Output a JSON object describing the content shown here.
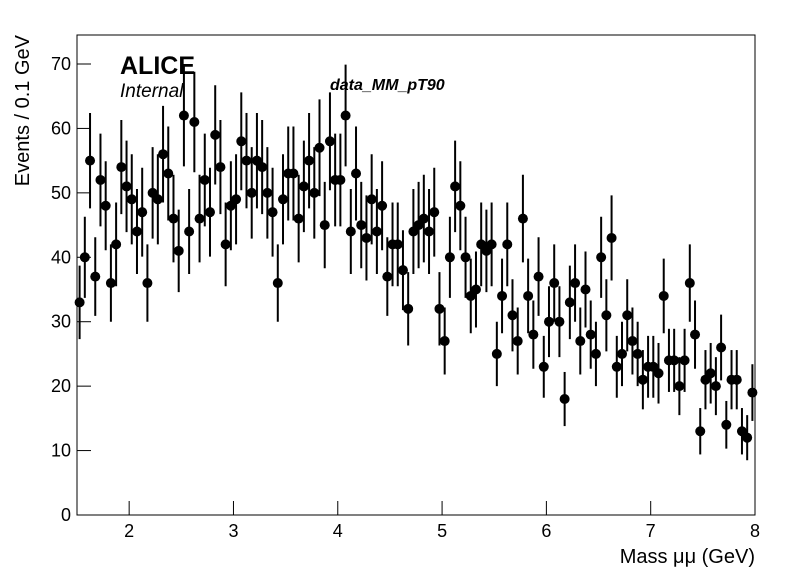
{
  "chart_data": {
    "type": "scatter",
    "title": "data_MM_pT90",
    "annotations": [
      "ALICE",
      "Internal"
    ],
    "x_label": "Mass μμ (GeV)",
    "y_label": "Events / 0.1 GeV",
    "xlim": [
      1.5,
      8
    ],
    "xticks": [
      2,
      3,
      4,
      5,
      6,
      7,
      8
    ],
    "ylim": [
      0,
      74.5
    ],
    "yticks": [
      0,
      10,
      20,
      30,
      40,
      50,
      60,
      70
    ],
    "color": "#000000",
    "x": [
      1.525,
      1.575,
      1.625,
      1.675,
      1.725,
      1.775,
      1.825,
      1.875,
      1.925,
      1.975,
      2.025,
      2.075,
      2.125,
      2.175,
      2.225,
      2.275,
      2.325,
      2.375,
      2.425,
      2.475,
      2.525,
      2.575,
      2.625,
      2.675,
      2.725,
      2.775,
      2.825,
      2.875,
      2.925,
      2.975,
      3.025,
      3.075,
      3.125,
      3.175,
      3.225,
      3.275,
      3.325,
      3.375,
      3.425,
      3.475,
      3.525,
      3.575,
      3.625,
      3.675,
      3.725,
      3.775,
      3.825,
      3.875,
      3.925,
      3.975,
      4.025,
      4.075,
      4.125,
      4.175,
      4.225,
      4.275,
      4.325,
      4.375,
      4.425,
      4.475,
      4.525,
      4.575,
      4.625,
      4.675,
      4.725,
      4.775,
      4.825,
      4.875,
      4.925,
      4.975,
      5.025,
      5.075,
      5.125,
      5.175,
      5.225,
      5.275,
      5.325,
      5.375,
      5.425,
      5.475,
      5.525,
      5.575,
      5.625,
      5.675,
      5.725,
      5.775,
      5.825,
      5.875,
      5.925,
      5.975,
      6.025,
      6.075,
      6.125,
      6.175,
      6.225,
      6.275,
      6.325,
      6.375,
      6.425,
      6.475,
      6.525,
      6.575,
      6.625,
      6.675,
      6.725,
      6.775,
      6.825,
      6.875,
      6.925,
      6.975,
      7.025,
      7.075,
      7.125,
      7.175,
      7.225,
      7.275,
      7.325,
      7.375,
      7.425,
      7.475,
      7.525,
      7.575,
      7.625,
      7.675,
      7.725,
      7.775,
      7.825,
      7.875,
      7.925,
      7.975
    ],
    "values": [
      33,
      40,
      55,
      37,
      52,
      48,
      36,
      42,
      54,
      51,
      49,
      44,
      47,
      36,
      50,
      49,
      56,
      53,
      46,
      41,
      62,
      44,
      61,
      46,
      52,
      47,
      59,
      54,
      42,
      48,
      49,
      58,
      55,
      50,
      55,
      54,
      50,
      47,
      36,
      49,
      53,
      53,
      46,
      51,
      55,
      50,
      57,
      45,
      58,
      52,
      52,
      62,
      44,
      53,
      45,
      43,
      49,
      44,
      48,
      37,
      42,
      42,
      38,
      32,
      44,
      45,
      46,
      44,
      47,
      32,
      27,
      40,
      51,
      48,
      40,
      34,
      35,
      42,
      41,
      42,
      25,
      34,
      42,
      31,
      27,
      46,
      34,
      28,
      37,
      23,
      30,
      36,
      30,
      18,
      33,
      36,
      27,
      35,
      28,
      25,
      40,
      31,
      43,
      23,
      25,
      31,
      27,
      25,
      21,
      23,
      23,
      22,
      34,
      24,
      24,
      20,
      24,
      36,
      28,
      13,
      21,
      22,
      20,
      26,
      14,
      21,
      21,
      13,
      12,
      19
    ],
    "errors": [
      5.7,
      6.3,
      7.4,
      6.1,
      7.2,
      6.9,
      6,
      6.5,
      7.3,
      7.1,
      7,
      6.6,
      6.9,
      6,
      7.1,
      7,
      7.5,
      7.3,
      6.8,
      6.4,
      7.9,
      6.6,
      7.8,
      6.8,
      7.2,
      6.9,
      7.7,
      7.3,
      6.5,
      6.9,
      7,
      7.6,
      7.4,
      7.1,
      7.4,
      7.3,
      7.1,
      6.9,
      6,
      7,
      7.3,
      7.3,
      6.8,
      7.1,
      7.4,
      7.1,
      7.5,
      6.7,
      7.6,
      7.2,
      7.2,
      7.9,
      6.6,
      7.3,
      6.7,
      6.6,
      7,
      6.6,
      6.9,
      6.1,
      6.5,
      6.5,
      6.2,
      5.7,
      6.6,
      6.7,
      6.8,
      6.6,
      6.9,
      5.7,
      5.2,
      6.3,
      7.1,
      6.9,
      6.3,
      5.8,
      5.9,
      6.5,
      6.4,
      6.5,
      5,
      5.8,
      6.5,
      5.6,
      5.2,
      6.8,
      5.8,
      5.3,
      6.1,
      4.8,
      5.5,
      6,
      5.5,
      4.2,
      5.7,
      6,
      5.2,
      5.9,
      5.3,
      5,
      6.3,
      5.6,
      6.6,
      4.8,
      5,
      5.6,
      5.2,
      5,
      4.6,
      4.8,
      4.8,
      4.7,
      5.8,
      4.9,
      4.9,
      4.5,
      4.9,
      6,
      5.3,
      3.6,
      4.6,
      4.7,
      4.5,
      5.1,
      3.7,
      4.6,
      4.6,
      3.6,
      3.5,
      4.4
    ]
  }
}
